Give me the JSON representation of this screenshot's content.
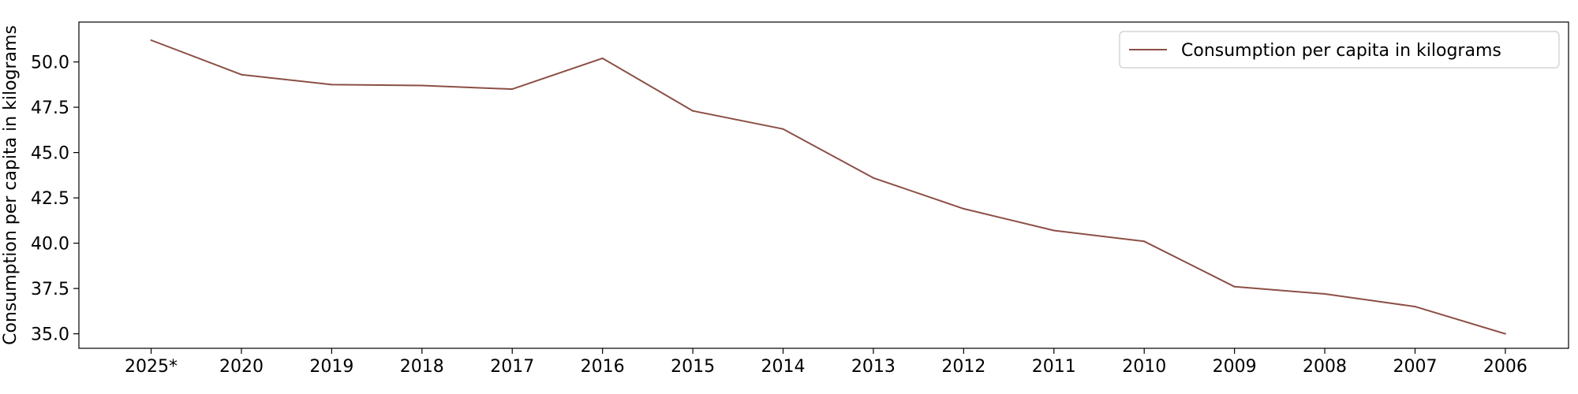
{
  "chart_data": {
    "type": "line",
    "categories": [
      "2025*",
      "2020",
      "2019",
      "2018",
      "2017",
      "2016",
      "2015",
      "2014",
      "2013",
      "2012",
      "2011",
      "2010",
      "2009",
      "2008",
      "2007",
      "2006"
    ],
    "series": [
      {
        "name": "Consumption per capita in kilograms",
        "values": [
          51.2,
          49.3,
          48.75,
          48.7,
          48.5,
          50.2,
          47.3,
          46.3,
          43.6,
          41.9,
          40.7,
          40.1,
          37.6,
          37.2,
          36.5,
          35.0
        ],
        "color": "#8c4f45"
      }
    ],
    "ylabel": "Consumption per capita in kilograms",
    "xlabel": "",
    "ylim": [
      34.2,
      52.2
    ],
    "yticks": [
      35.0,
      37.5,
      40.0,
      42.5,
      45.0,
      47.5,
      50.0
    ],
    "ytick_labels": [
      "35.0",
      "37.5",
      "40.0",
      "42.5",
      "45.0",
      "47.5",
      "50.0"
    ],
    "legend_position": "top-right",
    "grid": false
  }
}
